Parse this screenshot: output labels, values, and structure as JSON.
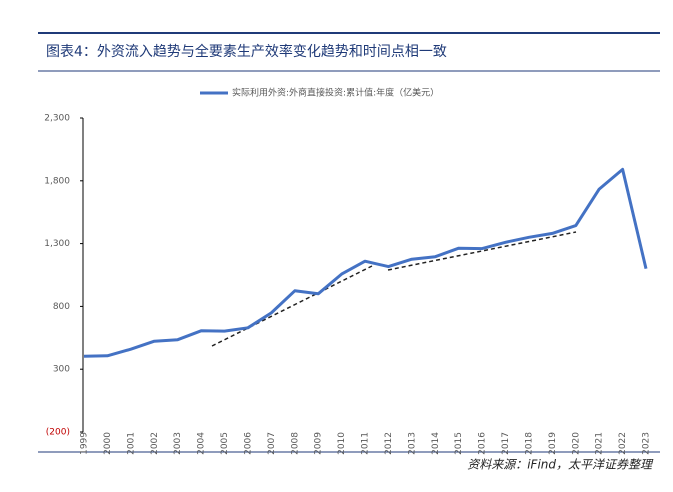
{
  "chart_data": {
    "type": "line",
    "title": "图表4：外资流入趋势与全要素生产效率变化趋势和时间点相一致",
    "source": "资料来源：iFind，太平洋证券整理",
    "categories": [
      "1999",
      "2000",
      "2001",
      "2002",
      "2003",
      "2004",
      "2005",
      "2006",
      "2007",
      "2008",
      "2009",
      "2010",
      "2011",
      "2012",
      "2013",
      "2014",
      "2015",
      "2016",
      "2017",
      "2018",
      "2019",
      "2020",
      "2021",
      "2022",
      "2023"
    ],
    "series": [
      {
        "name": "实际利用外资:外商直接投资:累计值:年度（亿美元）",
        "color": "#4472c4",
        "values": [
          403,
          407,
          459,
          523,
          535,
          606,
          603,
          630,
          748,
          924,
          900,
          1057,
          1160,
          1117,
          1176,
          1196,
          1263,
          1260,
          1310,
          1350,
          1381,
          1443,
          1734,
          1891,
          1100
        ]
      }
    ],
    "ylim": [
      -200,
      2300
    ],
    "yticks": [
      {
        "value": -200,
        "label": "(200)"
      },
      300,
      800,
      {
        "value": 1300,
        "label": "1,300"
      },
      {
        "value": 1800,
        "label": "1,800"
      },
      {
        "value": 2300,
        "label": "2,300"
      }
    ],
    "grid": false
  }
}
